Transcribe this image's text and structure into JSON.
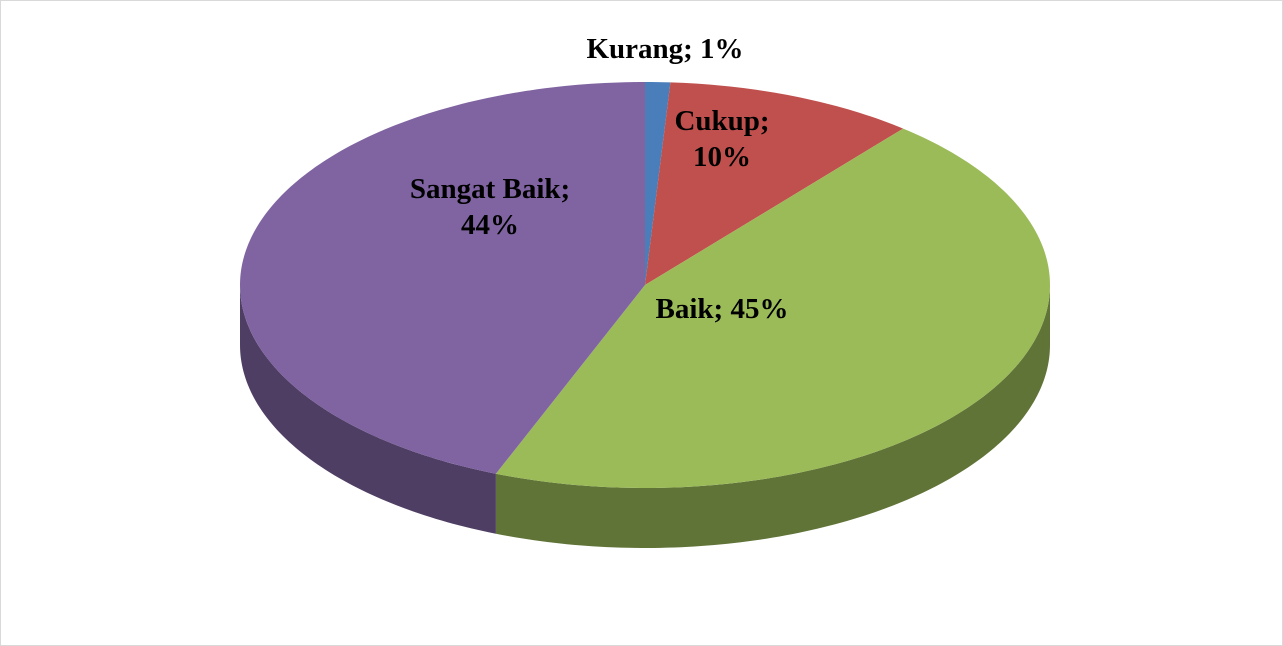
{
  "chart_data": {
    "type": "pie",
    "values": [
      1,
      10,
      45,
      44
    ],
    "value_labels": [
      "Kurang; 1%",
      "Cukup; 10%",
      "Baik; 45%",
      "Sangat Baik; 44%"
    ],
    "colors": [
      "#4a7ebb",
      "#c0504d",
      "#9bbb59",
      "#8064a2"
    ]
  }
}
